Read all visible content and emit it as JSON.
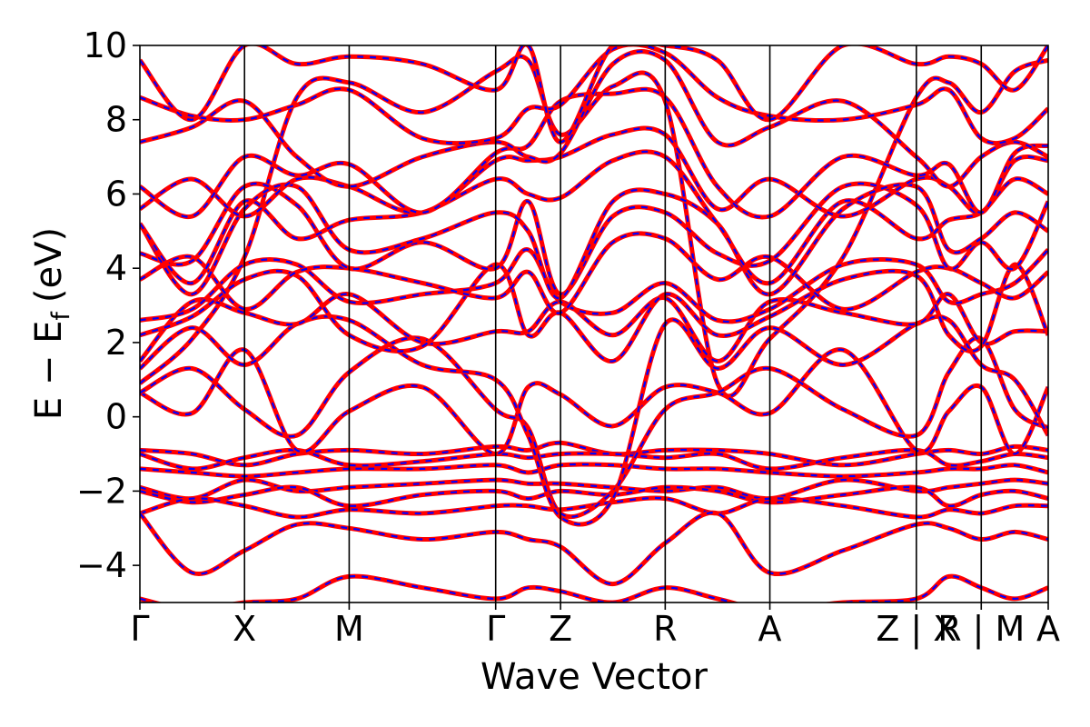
{
  "chart_data": {
    "type": "line",
    "title": "",
    "xlabel": "Wave Vector",
    "ylabel": {
      "text": "E − E",
      "subscript": "f",
      "unit": "(eV)"
    },
    "ylim": [
      -5,
      10
    ],
    "yticks": [
      -4,
      -2,
      0,
      2,
      4,
      6,
      8,
      10
    ],
    "ytick_labels": [
      "−4",
      "−2",
      "0",
      "2",
      "4",
      "6",
      "8",
      "10"
    ],
    "kpath": {
      "range": [
        0,
        8.68
      ],
      "points": [
        {
          "x": 0.0,
          "label": "Γ"
        },
        {
          "x": 1.0,
          "label": "X"
        },
        {
          "x": 2.0,
          "label": "M"
        },
        {
          "x": 3.4,
          "label": "Γ"
        },
        {
          "x": 4.02,
          "label": "Z"
        },
        {
          "x": 5.02,
          "label": "R"
        },
        {
          "x": 6.02,
          "label": "A"
        },
        {
          "x": 7.42,
          "label": "Z | X"
        },
        {
          "x": 8.04,
          "label": "R | M"
        },
        {
          "x": 8.68,
          "label": "A"
        }
      ]
    },
    "series": [
      {
        "style": "solid",
        "color": "#ff0000"
      },
      {
        "style": "dashed",
        "color": "#0000ff"
      }
    ],
    "bands": [
      [
        0.9,
        2.1,
        4.3,
        8.6,
        9.0,
        8.2,
        9.3,
        9.6,
        7.6,
        8.9,
        8.5
      ],
      [
        -0.9,
        -1.0,
        -1.3,
        -1.0,
        -0.9,
        -1.0,
        -0.8,
        -0.9,
        -0.7,
        -1.0,
        -0.9
      ],
      [
        -1.0,
        -1.4,
        -1.1,
        -0.9,
        -1.3,
        -1.2,
        -1.0,
        -1.1,
        -1.0,
        -1.0,
        -1.1
      ],
      [
        -1.4,
        -1.5,
        -1.6,
        -1.5,
        -1.4,
        -1.4,
        -1.3,
        -1.5,
        -1.3,
        -1.3,
        -1.4
      ],
      [
        -1.9,
        -2.2,
        -1.7,
        -2.0,
        -1.9,
        -1.8,
        -1.7,
        -1.8,
        -1.8,
        -1.9,
        -2.0
      ],
      [
        -2.0,
        -2.3,
        -2.1,
        -1.9,
        -2.4,
        -2.1,
        -2.0,
        -2.2,
        -2.0,
        -2.1,
        -1.9
      ],
      [
        -2.6,
        -2.2,
        -2.4,
        -2.7,
        -2.5,
        -2.6,
        -2.4,
        -2.4,
        -2.5,
        -2.3,
        -2.2
      ],
      [
        -2.6,
        -4.2,
        -3.6,
        -2.9,
        -3.0,
        -3.3,
        -3.1,
        -3.3,
        -3.5,
        -4.5,
        -3.4
      ],
      [
        0.65,
        0.1,
        1.8,
        -0.9,
        0.15,
        0.8,
        -1.0,
        0.8,
        0.6,
        -0.25,
        0.8
      ],
      [
        0.65,
        1.3,
        0.2,
        -0.5,
        1.2,
        2.1,
        0.2,
        -0.3,
        -2.6,
        -2.0,
        0.2
      ],
      [
        1.3,
        2.4,
        1.4,
        2.5,
        2.6,
        1.4,
        1.0,
        -0.5,
        -2.7,
        -2.2,
        2.5
      ],
      [
        1.5,
        3.1,
        2.8,
        2.5,
        3.3,
        2.0,
        2.3,
        2.3,
        3.1,
        2.2,
        3.2
      ],
      [
        2.2,
        2.7,
        3.7,
        3.8,
        2.2,
        1.9,
        4.1,
        2.2,
        2.8,
        1.5,
        3.3
      ],
      [
        2.6,
        2.9,
        4.1,
        4.1,
        3.1,
        3.3,
        3.6,
        4.5,
        3.1,
        2.8,
        3.6
      ],
      [
        3.7,
        4.3,
        2.9,
        3.9,
        4.0,
        3.6,
        3.2,
        3.9,
        2.8,
        4.7,
        4.8
      ],
      [
        4.4,
        4.2,
        6.2,
        5.7,
        4.0,
        4.7,
        4.0,
        5.8,
        3.3,
        5.4,
        5.5
      ],
      [
        5.2,
        3.3,
        5.6,
        6.2,
        4.5,
        4.8,
        5.5,
        5.0,
        3.2,
        5.8,
        6.0
      ],
      [
        5.2,
        3.6,
        5.8,
        4.8,
        5.3,
        5.5,
        6.4,
        6.0,
        5.9,
        6.9,
        7.0
      ],
      [
        5.6,
        6.4,
        5.4,
        6.4,
        6.2,
        5.5,
        6.9,
        6.9,
        7.0,
        7.6,
        7.6
      ],
      [
        6.2,
        5.4,
        7.0,
        6.5,
        6.8,
        5.5,
        7.1,
        7.3,
        8.5,
        8.7,
        8.6
      ],
      [
        7.4,
        7.8,
        8.5,
        7.0,
        6.2,
        7.0,
        7.4,
        7.0,
        7.1,
        9.5,
        9.6
      ],
      [
        8.6,
        8.1,
        8.0,
        8.4,
        8.8,
        7.5,
        7.5,
        8.3,
        8.4,
        9.9,
        9.8
      ],
      [
        9.6,
        8.0,
        10.0,
        9.5,
        9.7,
        9.5,
        8.8,
        10.0,
        7.4,
        10.0,
        10.0
      ],
      [
        -4.9,
        -5.2,
        -5.0,
        -4.9,
        -4.3,
        -4.6,
        -4.9,
        -4.6,
        -4.7,
        -5.0,
        -4.6
      ]
    ]
  }
}
